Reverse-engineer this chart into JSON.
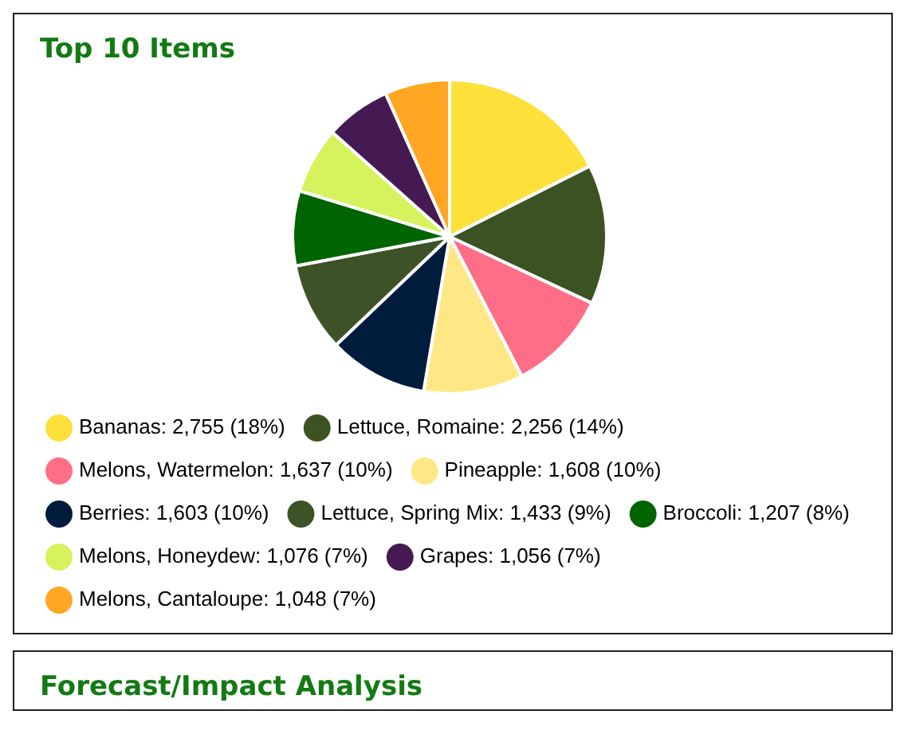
{
  "chart_data": [
    {
      "type": "pie",
      "title": "Top 10 Items",
      "categories": [
        "Bananas",
        "Lettuce, Romaine",
        "Melons, Watermelon",
        "Pineapple",
        "Berries",
        "Lettuce, Spring Mix",
        "Broccoli",
        "Melons, Honeydew",
        "Grapes",
        "Melons, Cantaloupe"
      ],
      "values": [
        2755,
        2256,
        1637,
        1608,
        1603,
        1433,
        1207,
        1076,
        1056,
        1048
      ],
      "value_labels": [
        "2,755 (18%)",
        "2,256 (14%)",
        "1,637 (10%)",
        "1,608 (10%)",
        "1,603 (10%)",
        "1,433 (9%)",
        "1,207 (8%)",
        "1,076 (7%)",
        "1,056 (7%)",
        "1,048 (7%)"
      ],
      "colors": [
        "#fde03a",
        "#3b5323",
        "#ff6e86",
        "#ffe785",
        "#001c3d",
        "#3d5226",
        "#006400",
        "#d6f25c",
        "#451a52",
        "#ffa623"
      ],
      "legend": "bottom"
    },
    {
      "type": "other",
      "title": "Forecast/Impact Analysis"
    }
  ]
}
